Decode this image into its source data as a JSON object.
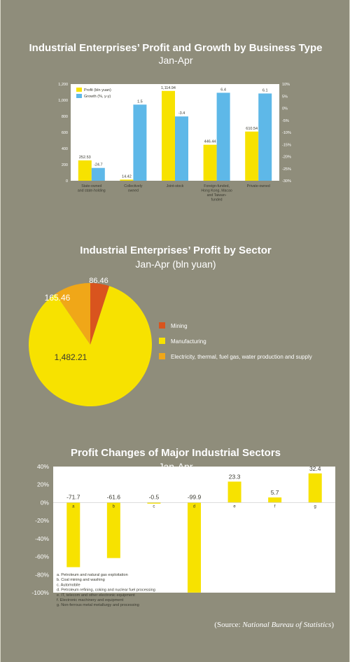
{
  "colors": {
    "yellow": "#f7e200",
    "blue": "#5eb8e8",
    "orange_red": "#d9541e",
    "amber": "#f0a718",
    "white": "#ffffff",
    "text_dark": "#3a3a30",
    "text_light": "#ffffff"
  },
  "chart_data": [
    {
      "type": "bar",
      "title": "Industrial Enterprises’ Profit and Growth by Business Type",
      "subtitle": "Jan-Apr",
      "categories": [
        "State-owned and state-holding",
        "Collectively owned",
        "Joint-stock",
        "Foreign-funded, Hong Kong, Macao and Taiwan-funded",
        "Private-owned"
      ],
      "category_lines": [
        [
          "State-owned",
          "and state-holding"
        ],
        [
          "Collectively",
          "owned"
        ],
        [
          "Joint-stock"
        ],
        [
          "Foreign-funded,",
          "Hong Kong, Macao",
          "and Taiwan-",
          "funded"
        ],
        [
          "Private-owned"
        ]
      ],
      "series": [
        {
          "name": "Profit (bln yuan)",
          "axis": "left",
          "values": [
            252.53,
            14.42,
            1114.94,
            446.44,
            610.54
          ],
          "labels": [
            "252.53",
            "14.42",
            "1,114.94",
            "446.44",
            "610.54"
          ]
        },
        {
          "name": "Growth (%, y-y)",
          "axis": "right",
          "values": [
            -24.7,
            1.5,
            -3.4,
            6.4,
            6.1
          ],
          "labels": [
            "-24.7",
            "1.5",
            "-3.4",
            "6.4",
            "6.1"
          ]
        }
      ],
      "left_ylim": [
        0,
        1200
      ],
      "left_ticks": [
        "0",
        "200",
        "400",
        "600",
        "800",
        "1,000",
        "1,200"
      ],
      "right_ylim": [
        -30,
        10
      ],
      "right_ticks": [
        "-30%",
        "-25%",
        "-20%",
        "-15%",
        "-10%",
        "-5%",
        "0%",
        "5%",
        "10%"
      ],
      "legend_position": "top-left"
    },
    {
      "type": "pie",
      "title": "Industrial Enterprises’ Profit by Sector",
      "subtitle": "Jan-Apr (bln yuan)",
      "slices": [
        {
          "name": "Mining",
          "value": 86.46,
          "label": "86.46"
        },
        {
          "name": "Manufacturing",
          "value": 1482.21,
          "label": "1,482.21"
        },
        {
          "name": "Electricity, thermal, fuel gas, water production and supply",
          "value": 165.46,
          "label": "165.46"
        }
      ],
      "legend_position": "right"
    },
    {
      "type": "bar",
      "title": "Profit Changes of Major Industrial Sectors",
      "subtitle": "Jan-Apr",
      "categories": [
        "a",
        "b",
        "c",
        "d",
        "e",
        "f",
        "g"
      ],
      "values": [
        -71.7,
        -61.6,
        -0.5,
        -99.9,
        23.3,
        5.7,
        32.4
      ],
      "labels": [
        "-71.7",
        "-61.6",
        "-0.5",
        "-99.9",
        "23.3",
        "5.7",
        "32.4"
      ],
      "ylim": [
        -100,
        40
      ],
      "yticks": [
        "-100%",
        "-80%",
        "-60%",
        "-40%",
        "-20%",
        "0%",
        "20%",
        "40%"
      ],
      "notes": [
        "a. Petroleum and natural gas exploitation",
        "b. Coal mining and washing",
        "c. Automobile",
        "d. Petroleum refining, coking and nuclear fuel processing",
        "e. IT, telecom and other electronic equipment",
        "f. Electronic machinery and equipment",
        "g. Non-ferrous metal metallurgy and processing"
      ]
    }
  ],
  "source": {
    "prefix": "(Source: ",
    "name": "National Bureau of Statistics",
    "suffix": ")"
  }
}
